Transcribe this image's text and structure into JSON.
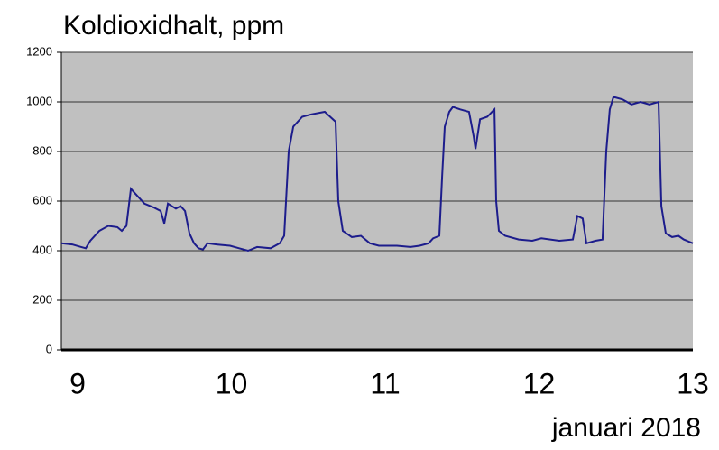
{
  "chart_data": {
    "type": "line",
    "title": "Koldioxidhalt, ppm",
    "x_label": "januari 2018",
    "xlim": [
      8.894,
      13
    ],
    "xticks": [
      9,
      10,
      11,
      12,
      13
    ],
    "ylim": [
      0,
      1200
    ],
    "yticks": [
      0,
      200,
      400,
      600,
      800,
      1000,
      1200
    ],
    "grid": true,
    "x": [
      8.894,
      8.965,
      9.023,
      9.053,
      9.082,
      9.141,
      9.199,
      9.258,
      9.287,
      9.317,
      9.346,
      9.375,
      9.434,
      9.493,
      9.54,
      9.563,
      9.587,
      9.639,
      9.669,
      9.698,
      9.727,
      9.757,
      9.786,
      9.815,
      9.845,
      9.903,
      9.991,
      10.05,
      10.108,
      10.167,
      10.255,
      10.314,
      10.343,
      10.372,
      10.402,
      10.46,
      10.519,
      10.607,
      10.677,
      10.695,
      10.724,
      10.783,
      10.842,
      10.9,
      10.959,
      11.076,
      11.164,
      11.223,
      11.282,
      11.311,
      11.352,
      11.37,
      11.387,
      11.416,
      11.44,
      11.487,
      11.545,
      11.575,
      11.587,
      11.616,
      11.663,
      11.71,
      11.721,
      11.739,
      11.78,
      11.868,
      11.956,
      12.015,
      12.132,
      12.22,
      12.249,
      12.284,
      12.308,
      12.367,
      12.413,
      12.437,
      12.46,
      12.484,
      12.543,
      12.601,
      12.66,
      12.718,
      12.777,
      12.795,
      12.824,
      12.865,
      12.906,
      12.941,
      13.0
    ],
    "series": [
      {
        "color": "#1c1c8c",
        "values": [
          430,
          425,
          415,
          410,
          440,
          480,
          500,
          495,
          480,
          500,
          650,
          630,
          590,
          575,
          560,
          510,
          590,
          570,
          580,
          560,
          470,
          430,
          410,
          405,
          430,
          425,
          420,
          410,
          400,
          415,
          410,
          430,
          460,
          800,
          900,
          940,
          950,
          960,
          920,
          600,
          480,
          455,
          460,
          430,
          420,
          420,
          415,
          420,
          430,
          450,
          460,
          700,
          900,
          960,
          980,
          970,
          960,
          860,
          810,
          930,
          940,
          970,
          600,
          480,
          460,
          445,
          440,
          450,
          440,
          445,
          540,
          530,
          430,
          440,
          445,
          800,
          970,
          1020,
          1010,
          990,
          1000,
          990,
          1000,
          580,
          470,
          455,
          460,
          445,
          430
        ]
      }
    ]
  }
}
